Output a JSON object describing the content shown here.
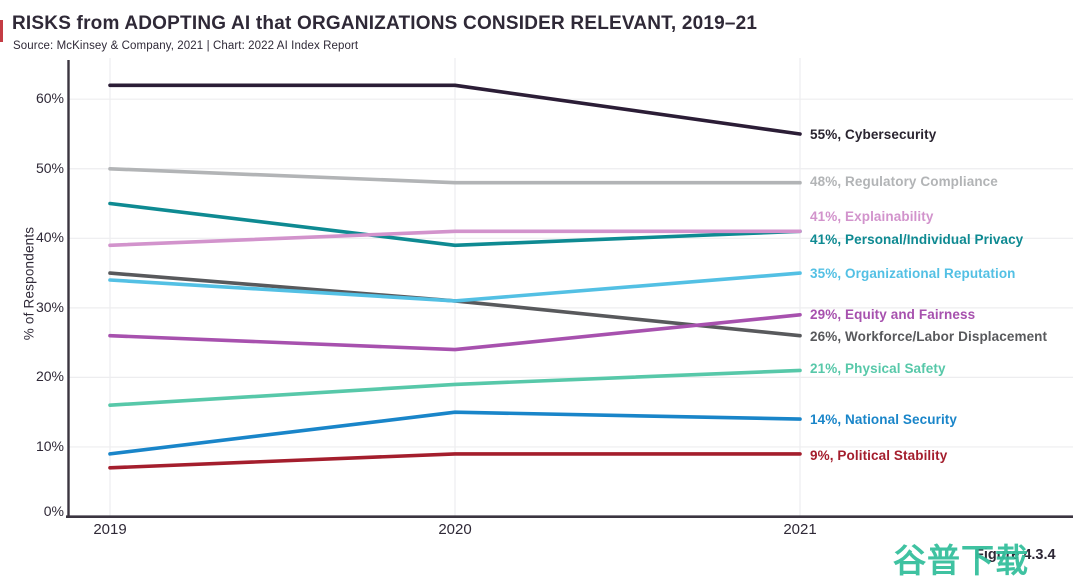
{
  "figure_label": "Figure 4.3.4",
  "watermark": {
    "text": "谷普下载",
    "color": "#35bf9d"
  },
  "colors": {
    "text": "#2f2937",
    "axis": "#3b3540",
    "gridline": "#ededef",
    "edge_mark": "#c43c44"
  },
  "chart_data": {
    "type": "line",
    "title": "RISKS from ADOPTING AI that ORGANIZATIONS CONSIDER RELEVANT, 2019–21",
    "source": "Source: McKinsey & Company, 2021 | Chart: 2022 AI Index Report",
    "xlabel": "",
    "ylabel": "% of Respondents",
    "x_categories": [
      "2019",
      "2020",
      "2021"
    ],
    "ylim": [
      0,
      65
    ],
    "yticks": [
      0,
      10,
      20,
      30,
      40,
      50,
      60
    ],
    "y_tick_labels": [
      "0%",
      "10%",
      "20%",
      "30%",
      "40%",
      "50%",
      "60%"
    ],
    "grid": true,
    "legend_position": "right-end-labels",
    "series": [
      {
        "name": "Regulatory Compliance",
        "values": [
          50,
          48,
          48
        ],
        "color": "#b2b4b6",
        "label": "48%, Regulatory Compliance",
        "label_dy": 0
      },
      {
        "name": "Cybersecurity",
        "values": [
          62,
          62,
          55
        ],
        "color": "#2b1d36",
        "label": "55%, Cybersecurity",
        "label_color": "#2a2430",
        "label_dy": 2
      },
      {
        "name": "Workforce/Labor Displacement",
        "values": [
          35,
          31,
          26
        ],
        "color": "#58595c",
        "label": "26%, Workforce/Labor Displacement",
        "label_dy": 2
      },
      {
        "name": "Personal/Individual Privacy",
        "values": [
          45,
          39,
          41
        ],
        "color": "#0e8a92",
        "label": "41%, Personal/Individual Privacy",
        "label_dy": 10
      },
      {
        "name": "Explainability",
        "values": [
          39,
          41,
          41
        ],
        "color": "#d293cc",
        "label": "41%, Explainability",
        "label_dy": -13
      },
      {
        "name": "Organizational Reputation",
        "values": [
          34,
          31,
          35
        ],
        "color": "#53c0e4",
        "label": "35%, Organizational Reputation",
        "label_dy": 2
      },
      {
        "name": "Equity and Fairness",
        "values": [
          26,
          24,
          29
        ],
        "color": "#a751ae",
        "label": "29%, Equity and Fairness",
        "label_dy": 1
      },
      {
        "name": "Physical Safety",
        "values": [
          16,
          19,
          21
        ],
        "color": "#57c8a9",
        "label": "21%, Physical Safety",
        "label_dy": 0
      },
      {
        "name": "National Security",
        "values": [
          9,
          15,
          14
        ],
        "color": "#1985c9",
        "label": "14%, National Security",
        "label_dy": 2
      },
      {
        "name": "Political Stability",
        "values": [
          7,
          9,
          9
        ],
        "color": "#a41e2d",
        "label": "9%, Political Stability",
        "label_dy": 3
      }
    ]
  }
}
